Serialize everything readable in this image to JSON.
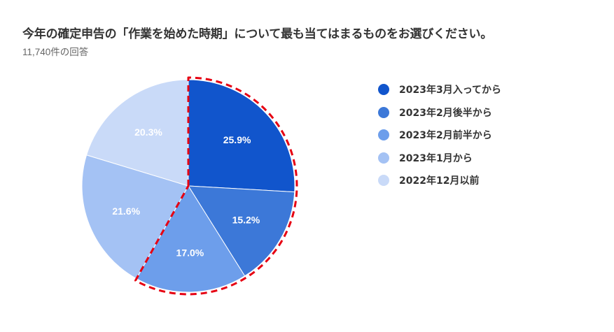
{
  "chart_data": {
    "type": "pie",
    "title": "今年の確定申告の「作業を始めた時期」について最も当てはまるものをお選びください。",
    "subtitle": "11,740件の回答",
    "categories": [
      "2023年3月入ってから",
      "2023年2月後半から",
      "2023年2月前半から",
      "2023年1月から",
      "2022年12月以前"
    ],
    "values": [
      25.9,
      15.2,
      17.0,
      21.6,
      20.3
    ],
    "value_labels": [
      "25.9%",
      "15.2%",
      "17.0%",
      "21.6%",
      "20.3%"
    ],
    "colors": [
      "#1155cc",
      "#3c78d8",
      "#6d9eeb",
      "#a4c2f4",
      "#c9daf8"
    ],
    "label_colors": [
      "#ffffff",
      "#ffffff",
      "#ffffff",
      "#ffffff",
      "#ffffff"
    ],
    "legend_position": "right",
    "highlight_slices": [
      0,
      1,
      2
    ],
    "highlight_color": "#e60012",
    "highlight_style": "dashed"
  }
}
